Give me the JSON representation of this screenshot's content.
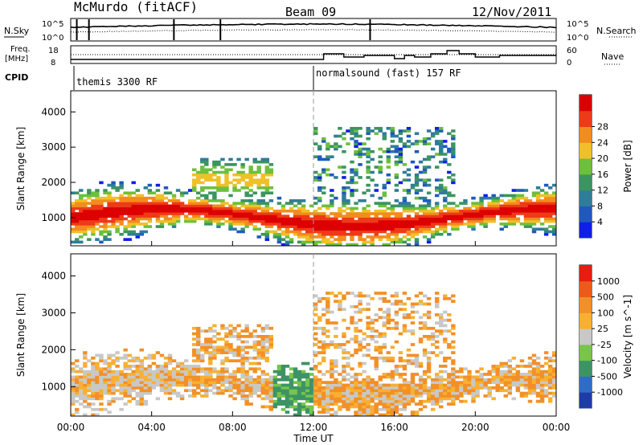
{
  "header": {
    "station": "McMurdo (fitACF)",
    "beam": "Beam 09",
    "date": "12/Nov/2011"
  },
  "top_panel": {
    "left_label": "N.Sky",
    "right_label": "N.Search",
    "ticks_left": [
      "10^5",
      "10^0"
    ],
    "ticks_right": [
      "10^5",
      "10^0"
    ]
  },
  "freq_panel": {
    "left_label_1": "Freq.",
    "left_label_2": "[MHz]",
    "right_label": "Nave",
    "ticks_left": [
      "18",
      "8"
    ],
    "ticks_right": [
      "60",
      "0"
    ]
  },
  "cpid": {
    "label": "CPID",
    "segments": [
      {
        "name": "themis 3300 RF",
        "start_hour": 0
      },
      {
        "name": "normalsound (fast) 157 RF",
        "start_hour": 12
      }
    ]
  },
  "chart_data": [
    {
      "type": "heatmap",
      "name": "power",
      "ylabel": "Slant Range [km]",
      "yticks": [
        "1000",
        "2000",
        "3000",
        "4000"
      ],
      "ylim": [
        200,
        4600
      ],
      "xlim": [
        0,
        24
      ],
      "colorbar": {
        "label": "Power [dB]",
        "ticks": [
          "4",
          "8",
          "12",
          "16",
          "20",
          "24",
          "28"
        ],
        "colors": [
          "#0f1fe8",
          "#1f59c0",
          "#2f7c9c",
          "#3c9460",
          "#6cc03c",
          "#f0c028",
          "#f28c1e",
          "#ee3a18",
          "#dd0000"
        ]
      }
    },
    {
      "type": "heatmap",
      "name": "velocity",
      "ylabel": "Slant Range [km]",
      "yticks": [
        "1000",
        "2000",
        "3000",
        "4000"
      ],
      "ylim": [
        200,
        4600
      ],
      "xlim": [
        0,
        24
      ],
      "colorbar": {
        "label": "Velocity [m s^-1]",
        "ticks": [
          "1000",
          "500",
          "100",
          "25",
          "-25",
          "-100",
          "-500",
          "-1000"
        ],
        "colors": [
          "#1e3ca8",
          "#2f6cc8",
          "#3c9466",
          "#79c44a",
          "#c8c8c8",
          "#f8b030",
          "#f29028",
          "#ee5a1a",
          "#e81c10"
        ]
      }
    }
  ],
  "xaxis": {
    "ticks": [
      "00:00",
      "04:00",
      "08:00",
      "12:00",
      "16:00",
      "20:00",
      "00:00"
    ],
    "label": "Time UT"
  }
}
